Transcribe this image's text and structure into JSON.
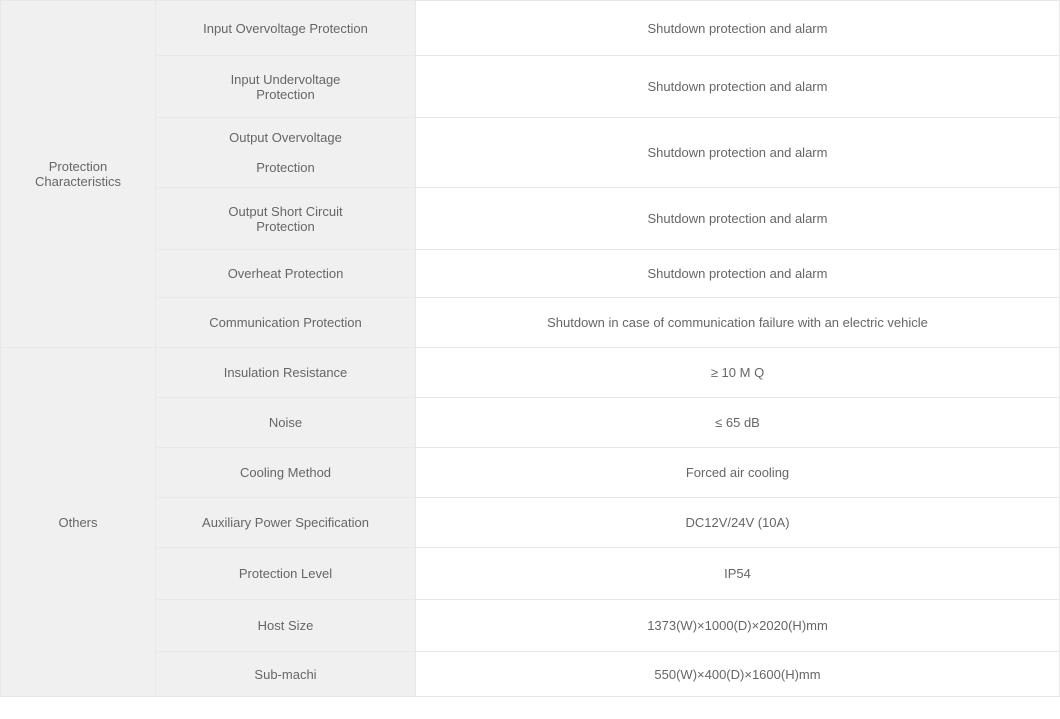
{
  "table": {
    "groups": [
      {
        "header": "Protection Characteristics",
        "rows": [
          {
            "label": "Input Overvoltage Protection",
            "value": "Shutdown protection and alarm",
            "h": "h-55"
          },
          {
            "label": "Input Undervoltage Protection",
            "value": "Shutdown protection and alarm",
            "h": "h-62"
          },
          {
            "label": "Output Overvoltage\nProtection",
            "value": "Shutdown protection and alarm",
            "h": "h-70"
          },
          {
            "label": "Output Short Circuit Protection",
            "value": "Shutdown protection and alarm",
            "h": "h-62"
          },
          {
            "label": "Overheat Protection",
            "value": "Shutdown protection and alarm",
            "h": "h-48"
          },
          {
            "label": "Communication Protection",
            "value": "Shutdown in case of communication failure with an electric vehicle",
            "h": "h-50"
          }
        ]
      },
      {
        "header": "Others",
        "rows": [
          {
            "label": "Insulation Resistance",
            "value": "≥ 10 M Q",
            "h": "h-50"
          },
          {
            "label": "Noise",
            "value": "≤ 65 dB",
            "h": "h-50"
          },
          {
            "label": "Cooling Method",
            "value": "Forced air cooling",
            "h": "h-50"
          },
          {
            "label": "Auxiliary Power Specification",
            "value": "DC12V/24V (10A)",
            "h": "h-50"
          },
          {
            "label": "Protection Level",
            "value": "IP54",
            "h": "h-52"
          },
          {
            "label": "Host Size",
            "value": "1373(W)×1000(D)×2020(H)mm",
            "h": "h-52"
          },
          {
            "label": "Sub-machi",
            "value": "550(W)×400(D)×1600(H)mm",
            "h": "h-45"
          }
        ]
      }
    ],
    "colors": {
      "border": "#e8e8e8",
      "label_bg": "#f0f0f0",
      "value_bg": "#ffffff",
      "text": "#666666"
    },
    "font_size": 13,
    "col_widths": {
      "group": 155,
      "label": 260
    }
  }
}
